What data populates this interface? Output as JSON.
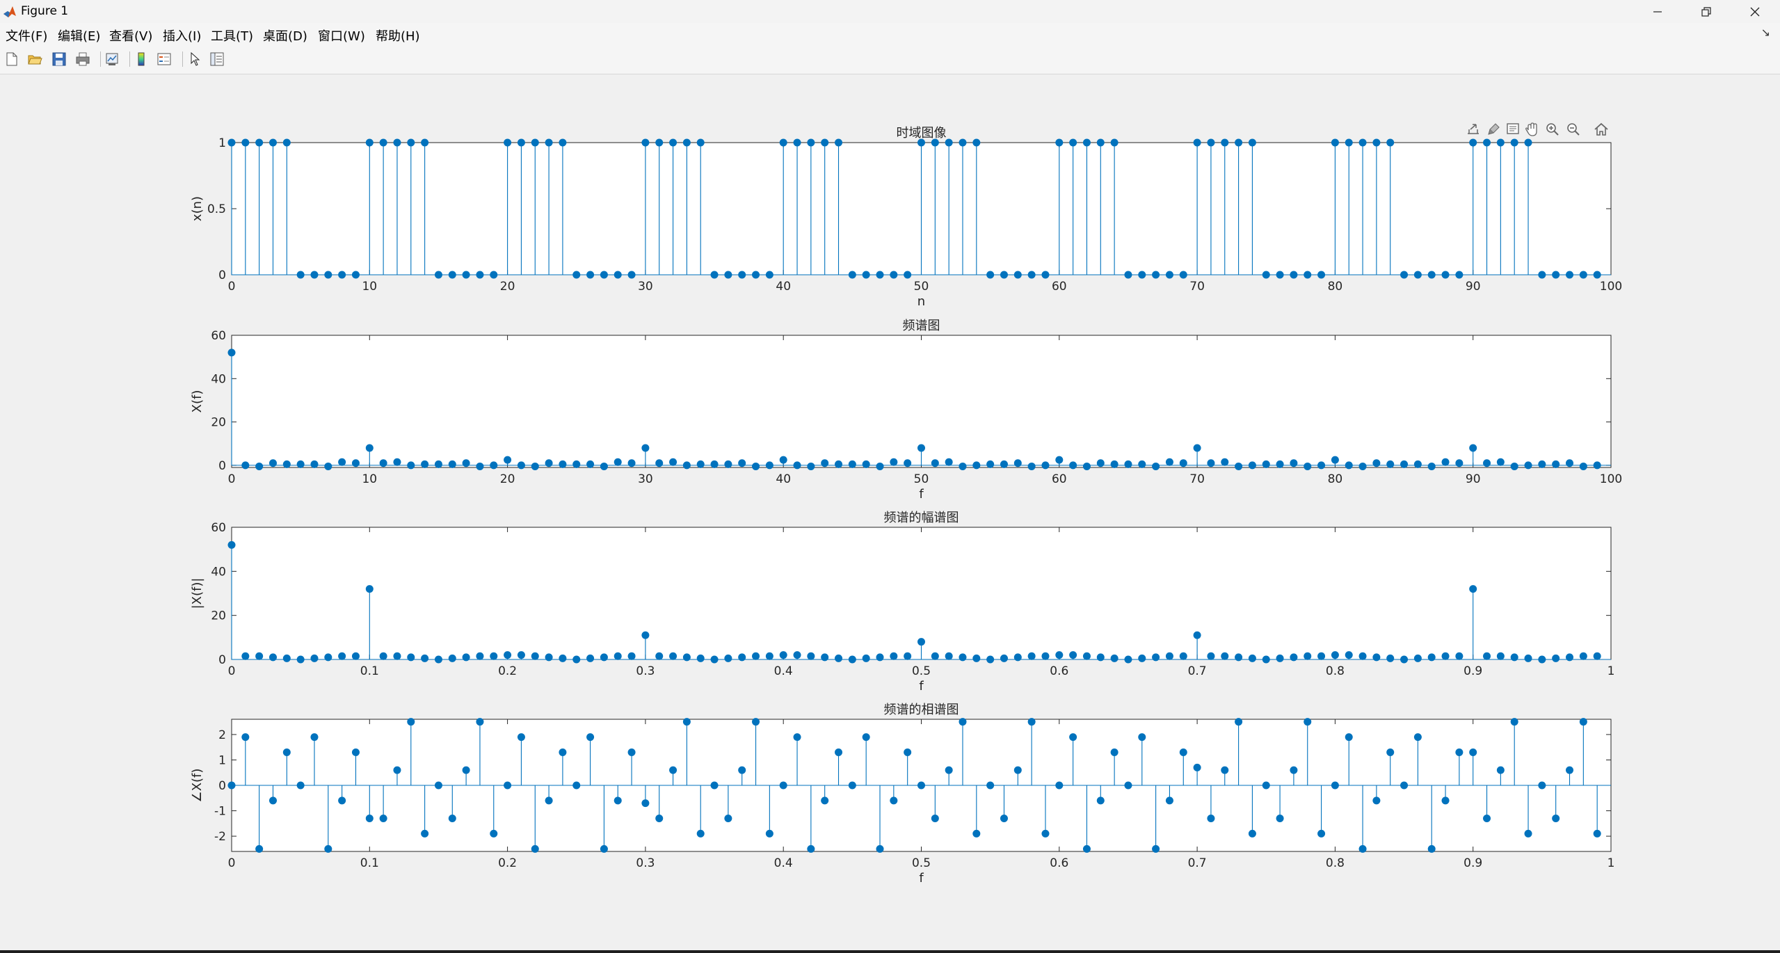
{
  "window": {
    "title": "Figure 1",
    "icon": "matlab-icon"
  },
  "window_controls": [
    "minimize-icon",
    "restore-icon",
    "close-icon"
  ],
  "menu": [
    {
      "label": "文件(F)"
    },
    {
      "label": "编辑(E)"
    },
    {
      "label": "查看(V)"
    },
    {
      "label": "插入(I)"
    },
    {
      "label": "工具(T)"
    },
    {
      "label": "桌面(D)"
    },
    {
      "label": "窗口(W)"
    },
    {
      "label": "帮助(H)"
    }
  ],
  "menu_overflow_glyph": "↘",
  "toolbar": [
    "new-figure-icon",
    "open-file-icon",
    "save-icon",
    "print-icon",
    "link-plot-icon",
    "colorbar-icon",
    "legend-icon",
    "edit-plot-icon",
    "property-inspector-icon"
  ],
  "axes_toolbar": [
    "export-icon",
    "brush-icon",
    "data-tips-icon",
    "pan-icon",
    "zoom-in-icon",
    "zoom-out-icon",
    "home-icon"
  ],
  "colors": {
    "stem": "#0072BD",
    "axes_bg": "#ffffff",
    "figure_bg": "#f0f0f0",
    "axis": "#262626"
  },
  "chart_data": [
    {
      "type": "stem",
      "title": "时域图像",
      "xlabel": "n",
      "ylabel": "x(n)",
      "xlim": [
        0,
        100
      ],
      "ylim": [
        0,
        1
      ],
      "xticks": [
        0,
        10,
        20,
        30,
        40,
        50,
        60,
        70,
        80,
        90,
        100
      ],
      "xtick_labels": [
        "0",
        "10",
        "20",
        "30",
        "40",
        "50",
        "60",
        "70",
        "80",
        "90",
        "100"
      ],
      "yticks": [
        0,
        0.5,
        1
      ],
      "ytick_labels": [
        "0",
        "0.5",
        "1"
      ],
      "x": [
        0,
        1,
        2,
        3,
        4,
        5,
        6,
        7,
        8,
        9,
        10,
        11,
        12,
        13,
        14,
        15,
        16,
        17,
        18,
        19,
        20,
        21,
        22,
        23,
        24,
        25,
        26,
        27,
        28,
        29,
        30,
        31,
        32,
        33,
        34,
        35,
        36,
        37,
        38,
        39,
        40,
        41,
        42,
        43,
        44,
        45,
        46,
        47,
        48,
        49,
        50,
        51,
        52,
        53,
        54,
        55,
        56,
        57,
        58,
        59,
        60,
        61,
        62,
        63,
        64,
        65,
        66,
        67,
        68,
        69,
        70,
        71,
        72,
        73,
        74,
        75,
        76,
        77,
        78,
        79,
        80,
        81,
        82,
        83,
        84,
        85,
        86,
        87,
        88,
        89,
        90,
        91,
        92,
        93,
        94,
        95,
        96,
        97,
        98,
        99
      ],
      "y": [
        1,
        1,
        1,
        1,
        1,
        0,
        0,
        0,
        0,
        0,
        1,
        1,
        1,
        1,
        1,
        0,
        0,
        0,
        0,
        0,
        1,
        1,
        1,
        1,
        1,
        0,
        0,
        0,
        0,
        0,
        1,
        1,
        1,
        1,
        1,
        0,
        0,
        0,
        0,
        0,
        1,
        1,
        1,
        1,
        1,
        0,
        0,
        0,
        0,
        0,
        1,
        1,
        1,
        1,
        1,
        0,
        0,
        0,
        0,
        0,
        1,
        1,
        1,
        1,
        1,
        0,
        0,
        0,
        0,
        0,
        1,
        1,
        1,
        1,
        1,
        0,
        0,
        0,
        0,
        0,
        1,
        1,
        1,
        1,
        1,
        0,
        0,
        0,
        0,
        0,
        1,
        1,
        1,
        1,
        1,
        0,
        0,
        0,
        0,
        0
      ]
    },
    {
      "type": "stem",
      "title": "频谱图",
      "xlabel": "f",
      "ylabel": "X(f)",
      "xlim": [
        0,
        100
      ],
      "ylim": [
        -1,
        60
      ],
      "xticks": [
        0,
        10,
        20,
        30,
        40,
        50,
        60,
        70,
        80,
        90,
        100
      ],
      "xtick_labels": [
        "0",
        "10",
        "20",
        "30",
        "40",
        "50",
        "60",
        "70",
        "80",
        "90",
        "100"
      ],
      "yticks": [
        0,
        20,
        40,
        60
      ],
      "ytick_labels": [
        "0",
        "20",
        "40",
        "60"
      ],
      "x": [
        0,
        1,
        2,
        3,
        4,
        5,
        6,
        7,
        8,
        9,
        10,
        11,
        12,
        13,
        14,
        15,
        16,
        17,
        18,
        19,
        20,
        21,
        22,
        23,
        24,
        25,
        26,
        27,
        28,
        29,
        30,
        31,
        32,
        33,
        34,
        35,
        36,
        37,
        38,
        39,
        40,
        41,
        42,
        43,
        44,
        45,
        46,
        47,
        48,
        49,
        50,
        51,
        52,
        53,
        54,
        55,
        56,
        57,
        58,
        59,
        60,
        61,
        62,
        63,
        64,
        65,
        66,
        67,
        68,
        69,
        70,
        71,
        72,
        73,
        74,
        75,
        76,
        77,
        78,
        79,
        80,
        81,
        82,
        83,
        84,
        85,
        86,
        87,
        88,
        89,
        90,
        91,
        92,
        93,
        94,
        95,
        96,
        97,
        98,
        99
      ],
      "y": [
        52,
        0,
        -0.5,
        1,
        0.5,
        0.5,
        0.5,
        -0.5,
        1.5,
        1,
        8,
        1,
        1.5,
        0,
        0.5,
        0.5,
        0.5,
        1,
        -0.5,
        0,
        2.5,
        0,
        -0.5,
        1,
        0.5,
        0.5,
        0.5,
        -0.5,
        1.5,
        1,
        8,
        1,
        1.5,
        0,
        0.5,
        0.5,
        0.5,
        1,
        -0.5,
        0,
        2.5,
        0,
        -0.5,
        1,
        0.5,
        0.5,
        0.5,
        -0.5,
        1.5,
        1,
        8,
        1,
        1.5,
        -0.5,
        0,
        0.5,
        0.5,
        1,
        -0.5,
        0,
        2.5,
        0,
        -0.5,
        1,
        0.5,
        0.5,
        0.5,
        -0.5,
        1.5,
        1,
        8,
        1,
        1.5,
        -0.5,
        0,
        0.5,
        0.5,
        1,
        -0.5,
        0,
        2.5,
        0,
        -0.5,
        1,
        0.5,
        0.5,
        0.5,
        -0.5,
        1.5,
        1,
        8,
        1,
        1.5,
        -0.5,
        0,
        0.5,
        0.5,
        1,
        -0.5,
        0
      ]
    },
    {
      "type": "stem",
      "title": "频谱的幅谱图",
      "xlabel": "f",
      "ylabel": "|X(f)|",
      "xlim": [
        0,
        1
      ],
      "ylim": [
        0,
        60
      ],
      "xticks": [
        0,
        0.1,
        0.2,
        0.3,
        0.4,
        0.5,
        0.6,
        0.7,
        0.8,
        0.9,
        1
      ],
      "xtick_labels": [
        "0",
        "0.1",
        "0.2",
        "0.3",
        "0.4",
        "0.5",
        "0.6",
        "0.7",
        "0.8",
        "0.9",
        "1"
      ],
      "yticks": [
        0,
        20,
        40,
        60
      ],
      "ytick_labels": [
        "0",
        "20",
        "40",
        "60"
      ],
      "x": [
        0,
        0.01,
        0.02,
        0.03,
        0.04,
        0.05,
        0.06,
        0.07,
        0.08,
        0.09,
        0.1,
        0.11,
        0.12,
        0.13,
        0.14,
        0.15,
        0.16,
        0.17,
        0.18,
        0.19,
        0.2,
        0.21,
        0.22,
        0.23,
        0.24,
        0.25,
        0.26,
        0.27,
        0.28,
        0.29,
        0.3,
        0.31,
        0.32,
        0.33,
        0.34,
        0.35,
        0.36,
        0.37,
        0.38,
        0.39,
        0.4,
        0.41,
        0.42,
        0.43,
        0.44,
        0.45,
        0.46,
        0.47,
        0.48,
        0.49,
        0.5,
        0.51,
        0.52,
        0.53,
        0.54,
        0.55,
        0.56,
        0.57,
        0.58,
        0.59,
        0.6,
        0.61,
        0.62,
        0.63,
        0.64,
        0.65,
        0.66,
        0.67,
        0.68,
        0.69,
        0.7,
        0.71,
        0.72,
        0.73,
        0.74,
        0.75,
        0.76,
        0.77,
        0.78,
        0.79,
        0.8,
        0.81,
        0.82,
        0.83,
        0.84,
        0.85,
        0.86,
        0.87,
        0.88,
        0.89,
        0.9,
        0.91,
        0.92,
        0.93,
        0.94,
        0.95,
        0.96,
        0.97,
        0.98,
        0.99
      ],
      "y": [
        52,
        1.5,
        1.5,
        1,
        0.5,
        0,
        0.5,
        1,
        1.5,
        1.5,
        32,
        1.5,
        1.5,
        1,
        0.5,
        0,
        0.5,
        1,
        1.5,
        1.5,
        2,
        2,
        1.5,
        1,
        0.5,
        0,
        0.5,
        1,
        1.5,
        1.5,
        11,
        1.5,
        1.5,
        1,
        0.5,
        0,
        0.5,
        1,
        1.5,
        1.5,
        2,
        2,
        1.5,
        1,
        0.5,
        0,
        0.5,
        1,
        1.5,
        1.5,
        8,
        1.5,
        1.5,
        1,
        0.5,
        0,
        0.5,
        1,
        1.5,
        1.5,
        2,
        2,
        1.5,
        1,
        0.5,
        0,
        0.5,
        1,
        1.5,
        1.5,
        11,
        1.5,
        1.5,
        1,
        0.5,
        0,
        0.5,
        1,
        1.5,
        1.5,
        2,
        2,
        1.5,
        1,
        0.5,
        0,
        0.5,
        1,
        1.5,
        1.5,
        32,
        1.5,
        1.5,
        1,
        0.5,
        0,
        0.5,
        1,
        1.5,
        1.5
      ]
    },
    {
      "type": "stem",
      "title": "频谱的相谱图",
      "xlabel": "f",
      "ylabel": "∠X(f)",
      "xlim": [
        0,
        1
      ],
      "ylim": [
        -2.6,
        2.6
      ],
      "xticks": [
        0,
        0.1,
        0.2,
        0.3,
        0.4,
        0.5,
        0.6,
        0.7,
        0.8,
        0.9,
        1
      ],
      "xtick_labels": [
        "0",
        "0.1",
        "0.2",
        "0.3",
        "0.4",
        "0.5",
        "0.6",
        "0.7",
        "0.8",
        "0.9",
        "1"
      ],
      "yticks": [
        -2,
        -1,
        0,
        1,
        2
      ],
      "ytick_labels": [
        "-2",
        "-1",
        "0",
        "1",
        "2"
      ],
      "x": [
        0,
        0.01,
        0.02,
        0.03,
        0.04,
        0.05,
        0.06,
        0.07,
        0.08,
        0.09,
        0.1,
        0.11,
        0.12,
        0.13,
        0.14,
        0.15,
        0.16,
        0.17,
        0.18,
        0.19,
        0.2,
        0.21,
        0.22,
        0.23,
        0.24,
        0.25,
        0.26,
        0.27,
        0.28,
        0.29,
        0.3,
        0.31,
        0.32,
        0.33,
        0.34,
        0.35,
        0.36,
        0.37,
        0.38,
        0.39,
        0.4,
        0.41,
        0.42,
        0.43,
        0.44,
        0.45,
        0.46,
        0.47,
        0.48,
        0.49,
        0.5,
        0.51,
        0.52,
        0.53,
        0.54,
        0.55,
        0.56,
        0.57,
        0.58,
        0.59,
        0.6,
        0.61,
        0.62,
        0.63,
        0.64,
        0.65,
        0.66,
        0.67,
        0.68,
        0.69,
        0.7,
        0.71,
        0.72,
        0.73,
        0.74,
        0.75,
        0.76,
        0.77,
        0.78,
        0.79,
        0.8,
        0.81,
        0.82,
        0.83,
        0.84,
        0.85,
        0.86,
        0.87,
        0.88,
        0.89,
        0.9,
        0.91,
        0.92,
        0.93,
        0.94,
        0.95,
        0.96,
        0.97,
        0.98,
        0.99
      ],
      "y": [
        0,
        1.9,
        -2.5,
        -0.6,
        1.3,
        0,
        1.9,
        -2.5,
        -0.6,
        1.3,
        -1.3,
        -1.3,
        0.6,
        2.5,
        -1.9,
        0,
        -1.3,
        0.6,
        2.5,
        -1.9,
        0,
        1.9,
        -2.5,
        -0.6,
        1.3,
        0,
        1.9,
        -2.5,
        -0.6,
        1.3,
        -0.7,
        -1.3,
        0.6,
        2.5,
        -1.9,
        0,
        -1.3,
        0.6,
        2.5,
        -1.9,
        0,
        1.9,
        -2.5,
        -0.6,
        1.3,
        0,
        1.9,
        -2.5,
        -0.6,
        1.3,
        0,
        -1.3,
        0.6,
        2.5,
        -1.9,
        0,
        -1.3,
        0.6,
        2.5,
        -1.9,
        0,
        1.9,
        -2.5,
        -0.6,
        1.3,
        0,
        1.9,
        -2.5,
        -0.6,
        1.3,
        0.7,
        -1.3,
        0.6,
        2.5,
        -1.9,
        0,
        -1.3,
        0.6,
        2.5,
        -1.9,
        0,
        1.9,
        -2.5,
        -0.6,
        1.3,
        0,
        1.9,
        -2.5,
        -0.6,
        1.3,
        1.3,
        -1.3,
        0.6,
        2.5,
        -1.9,
        0,
        -1.3,
        0.6,
        2.5,
        -1.9
      ]
    }
  ]
}
